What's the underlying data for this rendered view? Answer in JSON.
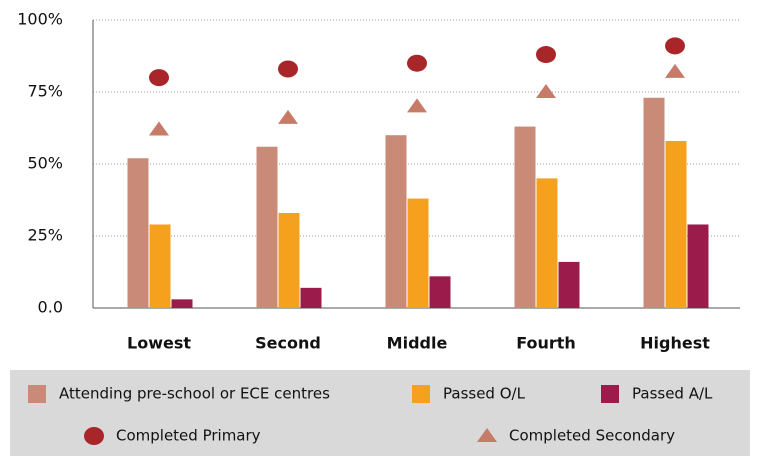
{
  "chart_data": {
    "type": "bar",
    "categories": [
      "Lowest",
      "Second",
      "Middle",
      "Fourth",
      "Highest"
    ],
    "series": [
      {
        "name": "Attending pre-school or ECE centres",
        "color": "#c98b78",
        "kind": "bar",
        "values": [
          52,
          56,
          60,
          63,
          73
        ]
      },
      {
        "name": "Passed O/L",
        "color": "#f5a11e",
        "kind": "bar",
        "values": [
          29,
          33,
          38,
          45,
          58
        ]
      },
      {
        "name": "Passed A/L",
        "color": "#9b1b4a",
        "kind": "bar",
        "values": [
          3,
          7,
          11,
          16,
          29
        ]
      },
      {
        "name": "Completed Primary",
        "color": "#a8262a",
        "kind": "point",
        "marker": "circle",
        "values": [
          80,
          83,
          85,
          88,
          91
        ]
      },
      {
        "name": "Completed Secondary",
        "color": "#c67b69",
        "kind": "point",
        "marker": "triangle",
        "values": [
          62,
          66,
          70,
          75,
          82
        ]
      }
    ],
    "ylim": [
      0,
      100
    ],
    "yticks": [
      {
        "value": 0,
        "label": "0.0"
      },
      {
        "value": 25,
        "label": "25%"
      },
      {
        "value": 50,
        "label": "50%"
      },
      {
        "value": 75,
        "label": "75%"
      },
      {
        "value": 100,
        "label": "100%"
      }
    ],
    "grid": true,
    "legend": "bottom"
  }
}
